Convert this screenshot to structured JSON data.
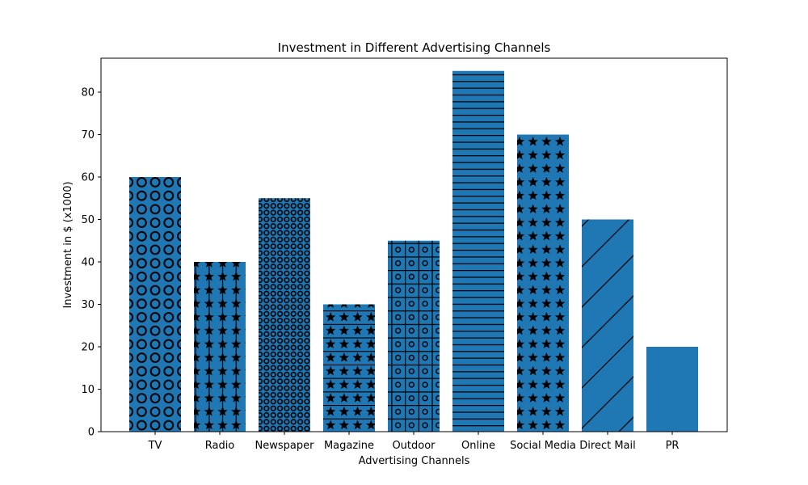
{
  "chart_data": {
    "type": "bar",
    "title": "Investment in Different Advertising Channels",
    "xlabel": "Advertising Channels",
    "ylabel": "Investment in $ (x1000)",
    "categories": [
      "TV",
      "Radio",
      "Newspaper",
      "Magazine",
      "Outdoor",
      "Online",
      "Social Media",
      "Direct Mail",
      "PR"
    ],
    "values": [
      60,
      40,
      55,
      30,
      45,
      85,
      70,
      50,
      20
    ],
    "hatches": [
      "large-circles",
      "stars-vertical",
      "small-circles",
      "stars-horizontal",
      "grid-circles",
      "horizontal-lines",
      "stars",
      "diagonal-lines",
      "none"
    ],
    "ylim": [
      0,
      88
    ],
    "yticks": [
      0,
      10,
      20,
      30,
      40,
      50,
      60,
      70,
      80
    ],
    "grid": false,
    "legend": "none",
    "bar_color": "#1f77b4",
    "hatch_color": "#000000"
  }
}
